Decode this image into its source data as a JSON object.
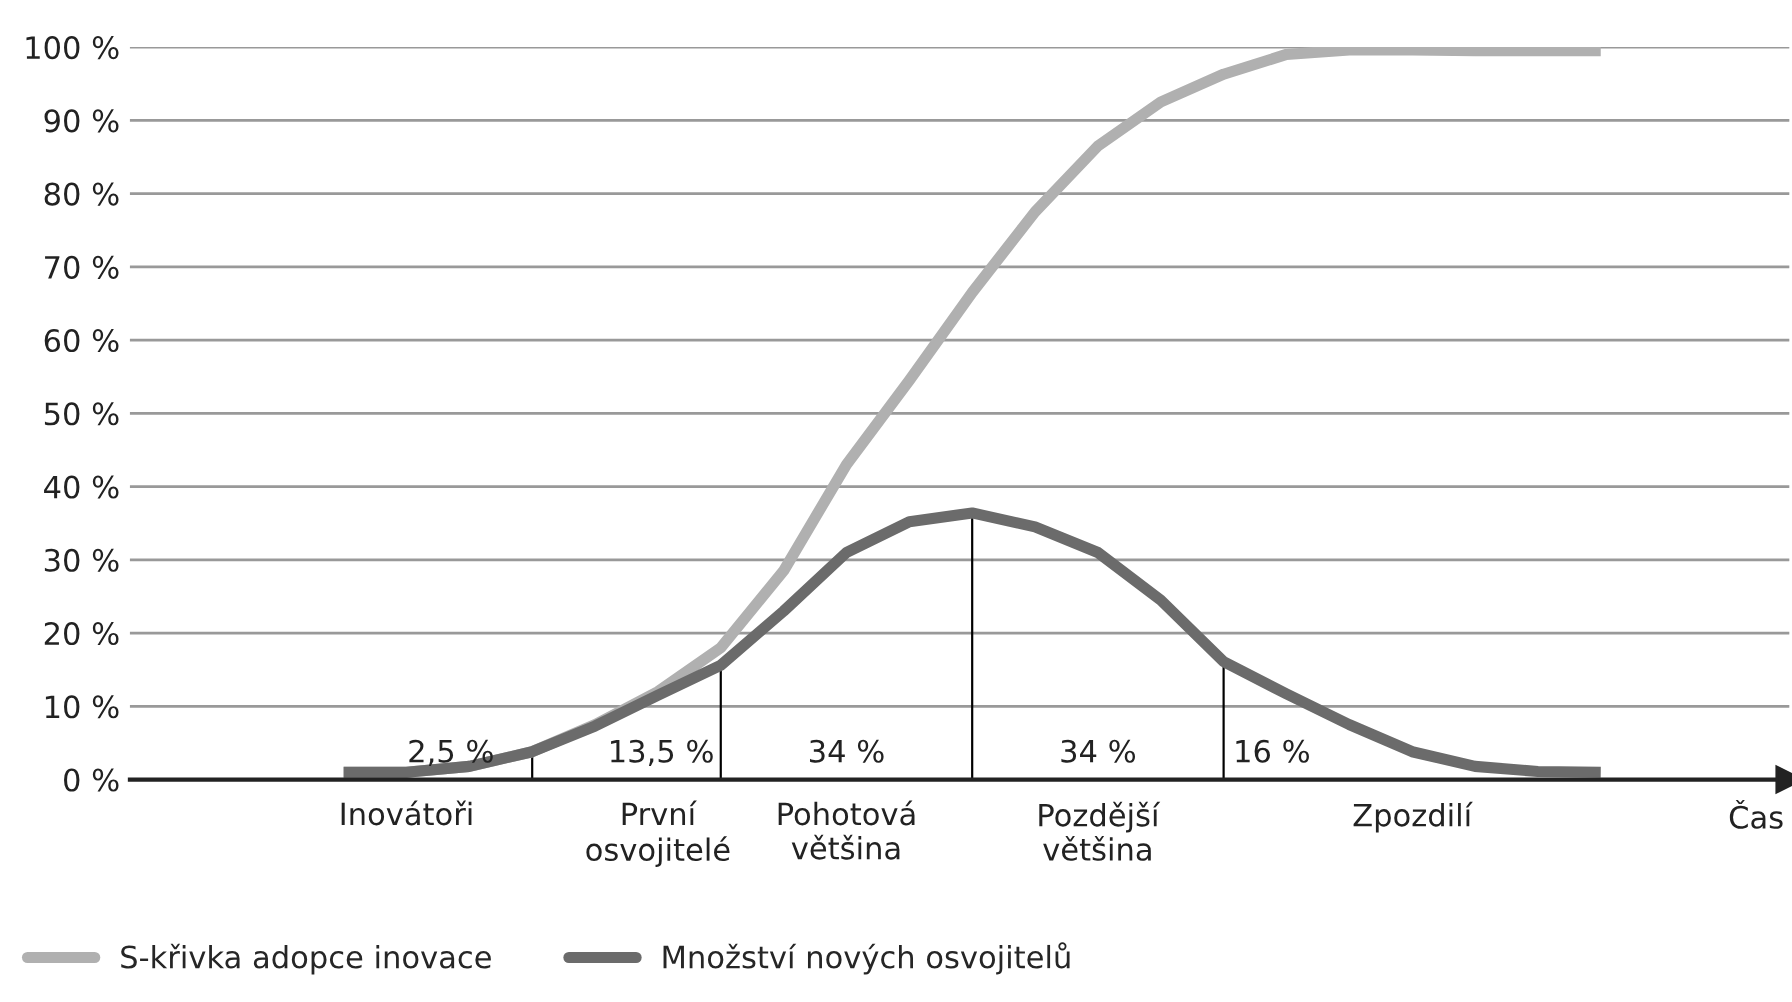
{
  "chart_data": {
    "type": "line",
    "xlabel": "Čas",
    "categories": [
      null,
      "Inovátoři",
      null,
      null,
      null,
      "První\nosvojitelé",
      null,
      null,
      "Pohotová\nvětšina",
      null,
      null,
      null,
      "Pozdější\nvětšina",
      null,
      null,
      null,
      null,
      "Zpozdilí",
      null,
      null,
      null
    ],
    "series": [
      {
        "name": "S-křivka adopce inovace",
        "color": "#b0b0b0",
        "values": [
          1,
          1,
          1.8,
          3.8,
          7.5,
          12,
          18,
          28.5,
          43,
          54.5,
          66.5,
          77.5,
          86.5,
          92.5,
          96.3,
          99,
          99.6,
          99.6,
          99.5,
          99.5,
          99.5
        ]
      },
      {
        "name": "Množství nových osvojitelů",
        "color": "#6b6b6b",
        "values": [
          1,
          1,
          1.8,
          3.8,
          7.3,
          11.5,
          15.6,
          23,
          31,
          35.2,
          36.4,
          34.5,
          31,
          24.5,
          16.1,
          11.7,
          7.5,
          3.8,
          1.8,
          1.1,
          1
        ]
      },
      {
        "type": "bar",
        "color": "#000000",
        "values": [
          null,
          null,
          null,
          3.8,
          null,
          null,
          15.6,
          null,
          null,
          null,
          36.4,
          null,
          null,
          null,
          16.1,
          null,
          null,
          null,
          null,
          null,
          null
        ]
      }
    ],
    "ylim": [
      0,
      100
    ],
    "yticks": [
      {
        "value": 0,
        "label": "0 %"
      },
      {
        "value": 10,
        "label": "10 %"
      },
      {
        "value": 20,
        "label": "20 %"
      },
      {
        "value": 30,
        "label": "30 %"
      },
      {
        "value": 40,
        "label": "40 %"
      },
      {
        "value": 50,
        "label": "50 %"
      },
      {
        "value": 60,
        "label": "60 %"
      },
      {
        "value": 70,
        "label": "70 %"
      },
      {
        "value": 80,
        "label": "80 %"
      },
      {
        "value": 90,
        "label": "90 %"
      },
      {
        "value": 100,
        "label": "100 %"
      }
    ],
    "annotations": [
      "2,5 %",
      "13,5 %",
      "34 %",
      "34 %",
      "16 %"
    ],
    "grid": "y",
    "legend": "bottom left",
    "line_style": "solid",
    "marker": "none"
  }
}
